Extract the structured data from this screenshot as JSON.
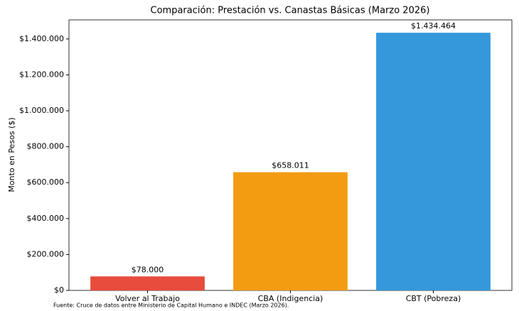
{
  "chart_data": {
    "type": "bar",
    "title": "Comparación: Prestación vs. Canastas Básicas (Marzo 2026)",
    "y_label": "Monto en Pesos ($)",
    "footnote": "Fuente: Cruce de datos entre Ministerio de Capital Humano e INDEC (Marzo 2026).",
    "categories": [
      "Volver al Trabajo",
      "CBA (Indigencia)",
      "CBT (Pobreza)"
    ],
    "values": [
      78000,
      658011,
      1434464
    ],
    "value_labels": [
      "$78.000",
      "$658.011",
      "$1.434.464"
    ],
    "colors": [
      "#e74c3c",
      "#f39c12",
      "#3498db"
    ],
    "ylim": [
      0,
      1506187
    ],
    "yticks": [
      {
        "value": 0,
        "label": "$0"
      },
      {
        "value": 200000,
        "label": "$200.000"
      },
      {
        "value": 400000,
        "label": "$400.000"
      },
      {
        "value": 600000,
        "label": "$600.000"
      },
      {
        "value": 800000,
        "label": "$800.000"
      },
      {
        "value": 1000000,
        "label": "$1.000.000"
      },
      {
        "value": 1200000,
        "label": "$1.200.000"
      },
      {
        "value": 1400000,
        "label": "$1.400.000"
      }
    ]
  }
}
